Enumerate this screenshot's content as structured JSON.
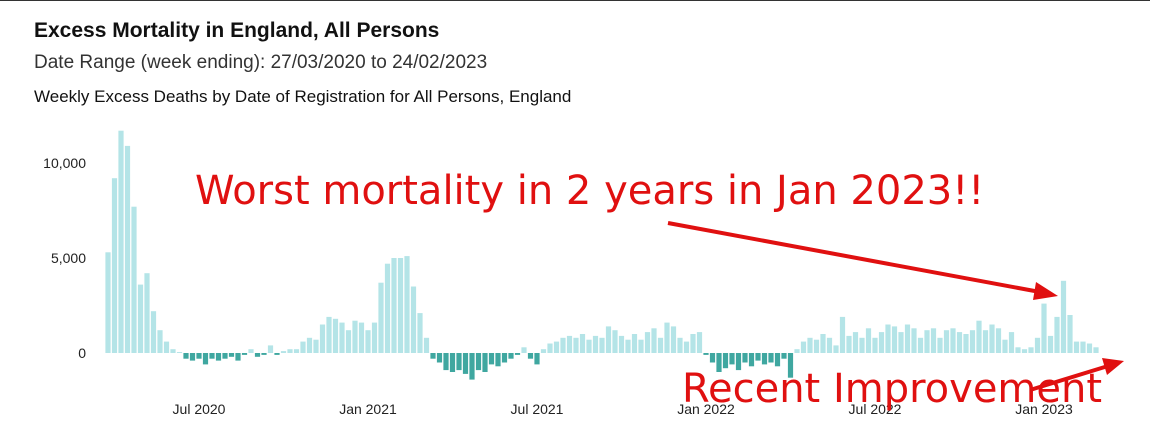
{
  "chart_data": {
    "type": "bar",
    "title": "Excess Mortality in England, All Persons",
    "subtitle": "Date Range (week ending): 27/03/2020 to 24/02/2023",
    "caption": "Weekly Excess Deaths by Date of Registration for All Persons, England",
    "annotations": [
      "Worst mortality in 2 years in Jan 2023!!",
      "Recent Improvement"
    ],
    "color": "#b4e4e7",
    "negative_color": "#3fa7a0",
    "ylim": [
      -2000,
      12500
    ],
    "yticks": [
      0,
      {
        "value": 5000,
        "label": "5,000"
      },
      {
        "value": 10000,
        "label": "10,000"
      }
    ],
    "categories": [
      null,
      null,
      null,
      null,
      null,
      null,
      null,
      null,
      null,
      null,
      null,
      null,
      null,
      null,
      "Jul 2020",
      null,
      null,
      null,
      null,
      null,
      null,
      null,
      null,
      null,
      null,
      null,
      null,
      null,
      null,
      null,
      null,
      null,
      null,
      null,
      null,
      null,
      null,
      null,
      null,
      null,
      "Jan 2021",
      null,
      null,
      null,
      null,
      null,
      null,
      null,
      null,
      null,
      null,
      null,
      null,
      null,
      null,
      null,
      null,
      null,
      null,
      null,
      null,
      null,
      null,
      null,
      null,
      null,
      "Jul 2021",
      null,
      null,
      null,
      null,
      null,
      null,
      null,
      null,
      null,
      null,
      null,
      null,
      null,
      null,
      null,
      null,
      null,
      null,
      null,
      null,
      null,
      null,
      null,
      null,
      null,
      "Jan 2022",
      null,
      null,
      null,
      null,
      null,
      null,
      null,
      null,
      null,
      null,
      null,
      null,
      null,
      null,
      null,
      null,
      null,
      null,
      null,
      null,
      null,
      null,
      null,
      null,
      null,
      "Jul 2022",
      null,
      null,
      null,
      null,
      null,
      null,
      null,
      null,
      null,
      null,
      null,
      null,
      null,
      null,
      null,
      null,
      null,
      null,
      null,
      null,
      null,
      null,
      null,
      null,
      null,
      "Jan 2023",
      null,
      null,
      null,
      null,
      null,
      null,
      null,
      null
    ],
    "values": [
      5300,
      9200,
      11700,
      10900,
      7700,
      3600,
      4200,
      2200,
      1200,
      600,
      200,
      50,
      -300,
      -400,
      -300,
      -600,
      -300,
      -400,
      -300,
      -200,
      -400,
      -100,
      200,
      -200,
      -100,
      400,
      -100,
      100,
      200,
      200,
      600,
      800,
      700,
      1500,
      1900,
      1800,
      1600,
      1200,
      1700,
      1600,
      1200,
      1600,
      3700,
      4700,
      5000,
      5000,
      5100,
      3500,
      2100,
      800,
      -300,
      -500,
      -900,
      -1000,
      -900,
      -1100,
      -1400,
      -900,
      -1000,
      -600,
      -700,
      -500,
      -300,
      -100,
      300,
      -300,
      -600,
      200,
      500,
      600,
      800,
      900,
      800,
      1000,
      700,
      900,
      800,
      1400,
      1200,
      900,
      700,
      1000,
      700,
      1100,
      1300,
      800,
      1600,
      1400,
      800,
      600,
      1000,
      1100,
      -100,
      -500,
      -1000,
      -800,
      -600,
      -900,
      -500,
      -700,
      -400,
      -600,
      -500,
      -700,
      -300,
      -1300,
      200,
      600,
      800,
      700,
      1000,
      800,
      400,
      1900,
      900,
      1100,
      800,
      1300,
      800,
      1100,
      1500,
      1400,
      1100,
      1500,
      1300,
      800,
      1200,
      1300,
      800,
      1200,
      1300,
      1100,
      1000,
      1200,
      1700,
      1200,
      1500,
      1300,
      700,
      1100,
      300,
      200,
      300,
      800,
      2600,
      900,
      1900,
      3800,
      2000,
      600,
      600,
      500,
      300
    ]
  }
}
